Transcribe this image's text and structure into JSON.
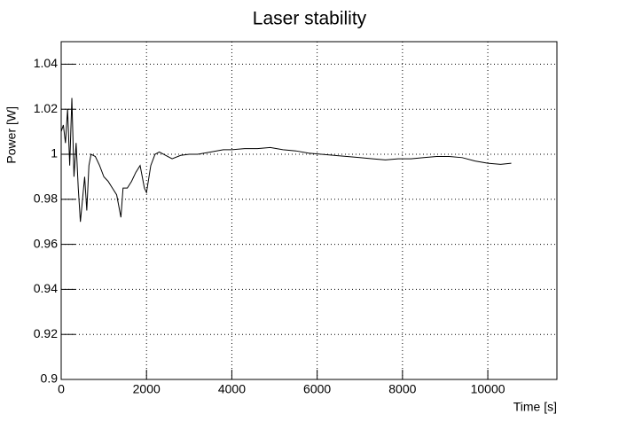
{
  "chart_data": {
    "type": "line",
    "title": "Laser stability",
    "x_label": "Time [s]",
    "y_label": "Power [W]",
    "x": [
      0,
      50,
      100,
      150,
      200,
      250,
      300,
      350,
      400,
      450,
      500,
      550,
      600,
      650,
      700,
      800,
      900,
      1000,
      1100,
      1200,
      1300,
      1400,
      1450,
      1550,
      1650,
      1750,
      1850,
      1900,
      1950,
      2000,
      2100,
      2200,
      2300,
      2500,
      2600,
      2800,
      3000,
      3200,
      3500,
      3800,
      4000,
      4300,
      4600,
      4900,
      5200,
      5500,
      5800,
      6100,
      6400,
      6700,
      7000,
      7300,
      7600,
      7900,
      8200,
      8500,
      8800,
      9100,
      9400,
      9700,
      10000,
      10300,
      10550
    ],
    "series": [
      {
        "color": "#000000",
        "values": [
          1.01,
          1.013,
          1.005,
          1.02,
          0.995,
          1.025,
          0.99,
          1.005,
          0.985,
          0.97,
          0.98,
          0.99,
          0.975,
          0.995,
          1.0,
          0.999,
          0.995,
          0.99,
          0.988,
          0.985,
          0.982,
          0.972,
          0.985,
          0.985,
          0.988,
          0.992,
          0.995,
          0.99,
          0.985,
          0.983,
          0.995,
          1.0,
          1.001,
          0.999,
          0.998,
          0.9995,
          1.0,
          1.0,
          1.001,
          1.002,
          1.002,
          1.0025,
          1.0025,
          1.003,
          1.002,
          1.0015,
          1.0005,
          1.0,
          0.9995,
          0.999,
          0.9985,
          0.998,
          0.9975,
          0.998,
          0.998,
          0.9985,
          0.999,
          0.999,
          0.9985,
          0.997,
          0.996,
          0.9955,
          0.996
        ]
      }
    ],
    "xlim": [
      0,
      11620
    ],
    "xticks": [
      0,
      2000,
      4000,
      6000,
      8000,
      10000
    ],
    "ylim": [
      0.9,
      1.05
    ],
    "yticks": [
      0.9,
      0.92,
      0.94,
      0.96,
      0.98,
      1,
      1.02,
      1.04
    ],
    "grid": true
  }
}
